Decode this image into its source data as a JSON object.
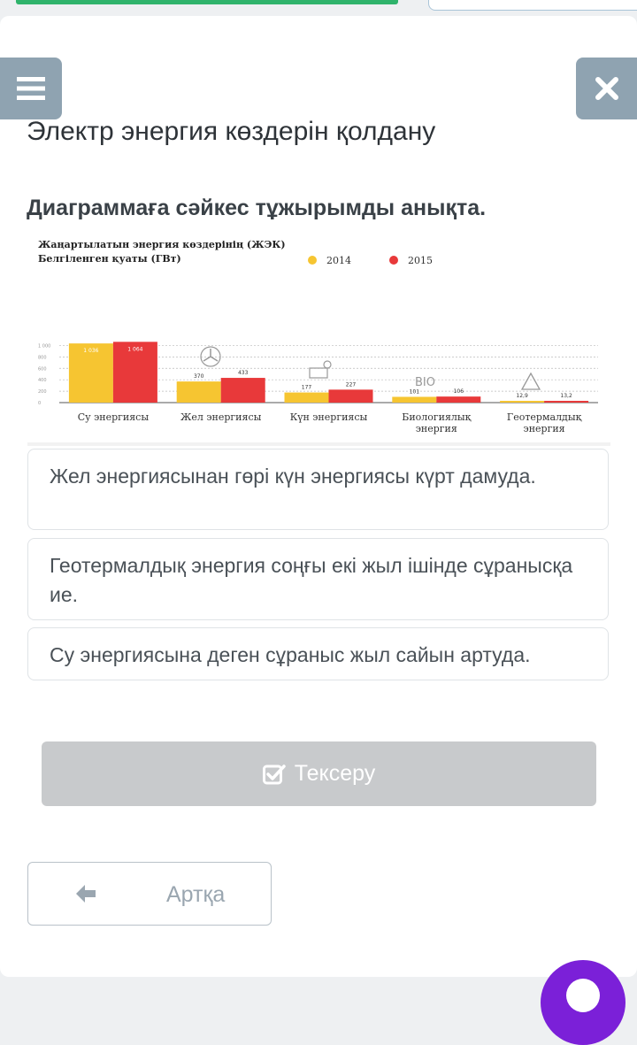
{
  "title": "Электр энергия көздерін қолдану",
  "question": "Диаграммаға сәйкес тұжырымды анықта.",
  "chart_data": {
    "type": "bar",
    "title": "Жаңартылатын энергия көздерінің (ЖЭК)",
    "subtitle": "Белгіленген қуаты (ГВт)",
    "categories": [
      "Су энергиясы",
      "Жел энергиясы",
      "Күн энергиясы",
      "Биологиялық энергия",
      "Геотермалдық энергия"
    ],
    "series": [
      {
        "name": "2014",
        "color": "#f6c531",
        "values": [
          1036,
          370,
          177,
          101,
          12.9
        ],
        "labels": [
          "1 036",
          "370",
          "177",
          "101",
          "12,9"
        ]
      },
      {
        "name": "2015",
        "color": "#e8393a",
        "values": [
          1064,
          433,
          227,
          106,
          13.2
        ],
        "labels": [
          "1 064",
          "433",
          "227",
          "106",
          "13,2"
        ]
      }
    ],
    "yticks": [
      "1 000",
      "800",
      "600",
      "400",
      "200",
      "0"
    ],
    "ylim": [
      0,
      1100
    ],
    "grid": true,
    "legend_position": "top-right"
  },
  "options": [
    "Жел энергиясынан гөрі күн энергиясы күрт дамуда.",
    "Геотермалдық энергия соңғы екі жыл ішінде сұранысқа ие.",
    "Су энергиясына деген сұраныс жыл сайын артуда."
  ],
  "check_label": "Тексеру",
  "back_label": "Артқа",
  "icons": {
    "menu": "hamburger-icon",
    "close": "close-icon",
    "check": "check-square-icon",
    "back": "arrow-left-icon",
    "fab": "fab-icon"
  }
}
